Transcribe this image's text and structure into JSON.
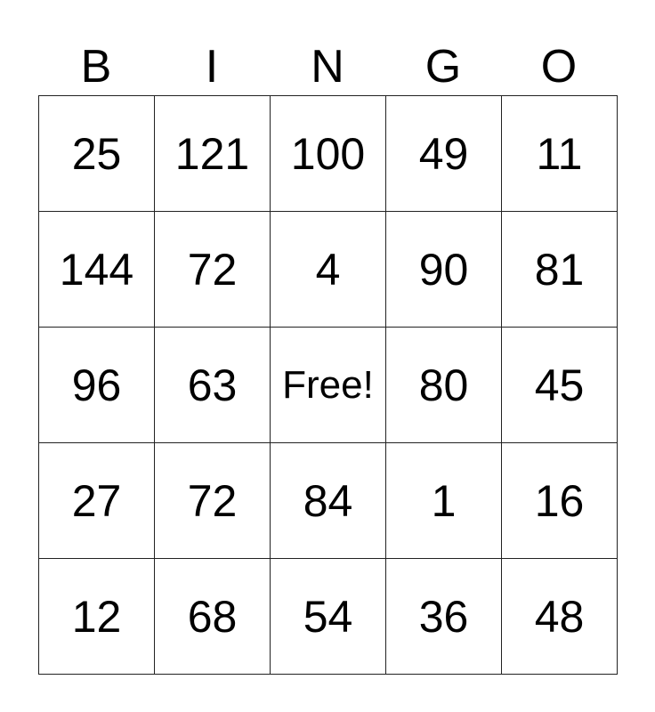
{
  "header": [
    "B",
    "I",
    "N",
    "G",
    "O"
  ],
  "rows": [
    [
      "25",
      "121",
      "100",
      "49",
      "11"
    ],
    [
      "144",
      "72",
      "4",
      "90",
      "81"
    ],
    [
      "96",
      "63",
      "Free!",
      "80",
      "45"
    ],
    [
      "27",
      "72",
      "84",
      "1",
      "16"
    ],
    [
      "12",
      "68",
      "54",
      "36",
      "48"
    ]
  ]
}
